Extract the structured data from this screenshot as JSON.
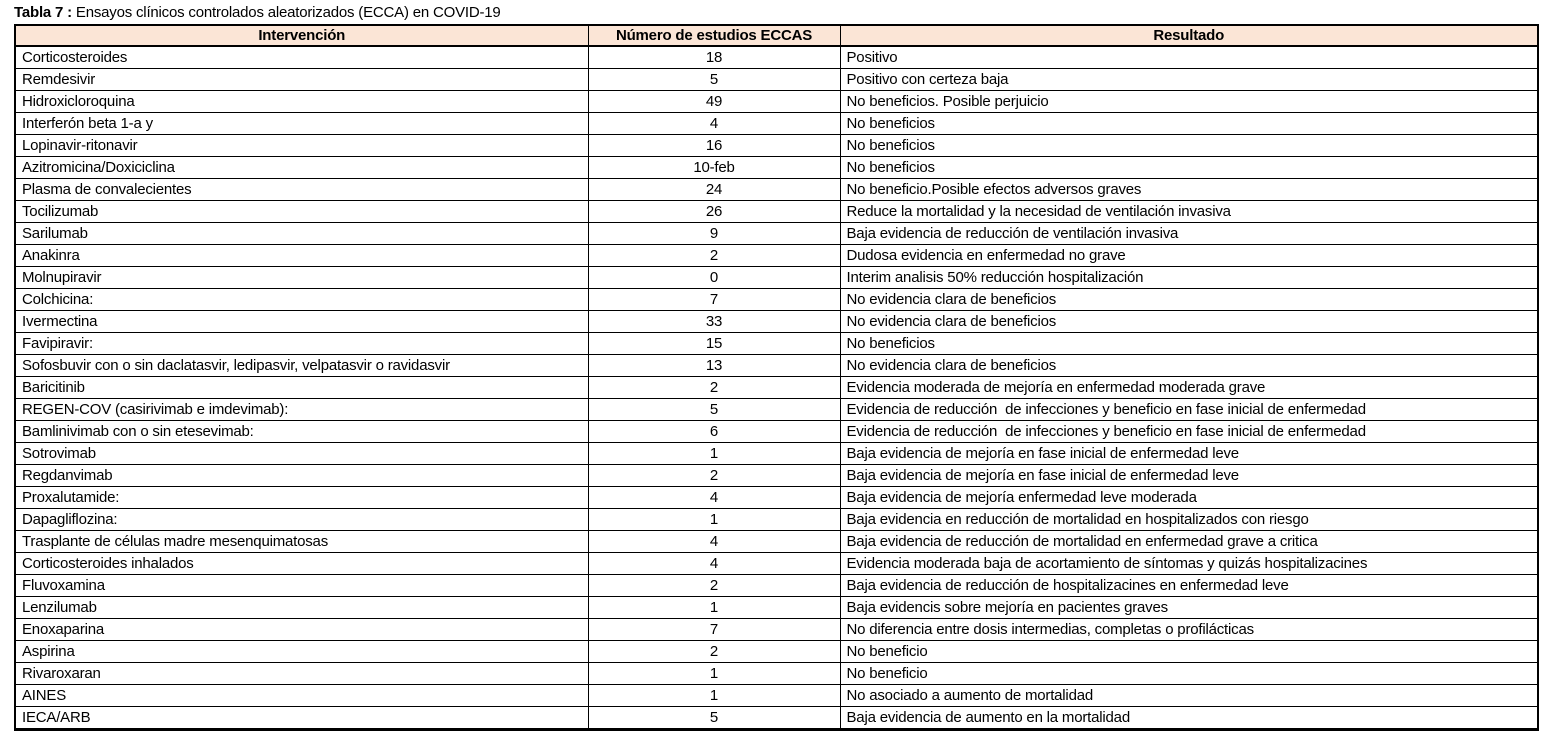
{
  "title": {
    "label": "Tabla 7 : ",
    "text": "Ensayos clínicos controlados aleatorizados (ECCA) en COVID-19"
  },
  "table": {
    "header_bg": "#FBE5D6",
    "border_color": "#000000",
    "headers": [
      "Intervención",
      "Número de estudios ECCAS",
      "Resultado"
    ],
    "rows": [
      {
        "intervencion": "Corticosteroides",
        "estudios": "18",
        "resultado": "Positivo"
      },
      {
        "intervencion": "Remdesivir",
        "estudios": "5",
        "resultado": "Positivo con certeza baja"
      },
      {
        "intervencion": "Hidroxicloroquina",
        "estudios": "49",
        "resultado": "No beneficios. Posible perjuicio"
      },
      {
        "intervencion": "Interferón beta 1-a y",
        "estudios": "4",
        "resultado": "No beneficios"
      },
      {
        "intervencion": "Lopinavir-ritonavir",
        "estudios": "16",
        "resultado": "No beneficios"
      },
      {
        "intervencion": "Azitromicina/Doxiciclina",
        "estudios": "10-feb",
        "resultado": "No beneficios"
      },
      {
        "intervencion": "Plasma de convalecientes",
        "estudios": "24",
        "resultado": "No beneficio.Posible efectos adversos graves"
      },
      {
        "intervencion": "Tocilizumab",
        "estudios": "26",
        "resultado": "Reduce la mortalidad y la necesidad de ventilación invasiva"
      },
      {
        "intervencion": "Sarilumab",
        "estudios": "9",
        "resultado": "Baja evidencia de reducción de ventilación invasiva"
      },
      {
        "intervencion": "Anakinra",
        "estudios": "2",
        "resultado": "Dudosa evidencia en enfermedad no grave"
      },
      {
        "intervencion": "Molnupiravir",
        "estudios": "0",
        "resultado": "Interim analisis 50% reducción hospitalización"
      },
      {
        "intervencion": "Colchicina:",
        "estudios": "7",
        "resultado": "No evidencia clara de beneficios"
      },
      {
        "intervencion": "Ivermectina",
        "estudios": "33",
        "resultado": "No evidencia clara de beneficios"
      },
      {
        "intervencion": "Favipiravir:",
        "estudios": "15",
        "resultado": "No beneficios"
      },
      {
        "intervencion": "Sofosbuvir con o sin daclatasvir, ledipasvir, velpatasvir o ravidasvir",
        "estudios": "13",
        "resultado": "No evidencia clara de beneficios"
      },
      {
        "intervencion": "Baricitinib",
        "estudios": "2",
        "resultado": "Evidencia moderada de mejoría en enfermedad moderada grave"
      },
      {
        "intervencion": "REGEN-COV (casirivimab e imdevimab):",
        "estudios": "5",
        "resultado": "Evidencia de reducción  de infecciones y beneficio en fase inicial de enfermedad"
      },
      {
        "intervencion": "Bamlinivimab con o sin etesevimab:",
        "estudios": "6",
        "resultado": "Evidencia de reducción  de infecciones y beneficio en fase inicial de enfermedad"
      },
      {
        "intervencion": "Sotrovimab",
        "estudios": "1",
        "resultado": "Baja evidencia de mejoría en fase inicial de enfermedad leve"
      },
      {
        "intervencion": "Regdanvimab",
        "estudios": "2",
        "resultado": "Baja evidencia de mejoría en fase inicial de enfermedad leve"
      },
      {
        "intervencion": "Proxalutamide:",
        "estudios": "4",
        "resultado": "Baja evidencia de mejoría enfermedad leve moderada"
      },
      {
        "intervencion": "Dapagliflozina:",
        "estudios": "1",
        "resultado": "Baja evidencia en reducción de mortalidad en hospitalizados con riesgo"
      },
      {
        "intervencion": "Trasplante de células madre mesenquimatosas",
        "estudios": "4",
        "resultado": "Baja evidencia de reducción de mortalidad en enfermedad grave a critica"
      },
      {
        "intervencion": "Corticosteroides inhalados",
        "estudios": "4",
        "resultado": "Evidencia moderada baja de acortamiento de síntomas y quizás hospitalizacines"
      },
      {
        "intervencion": "Fluvoxamina",
        "estudios": "2",
        "resultado": "Baja evidencia de reducción de hospitalizacines en enfermedad leve"
      },
      {
        "intervencion": "Lenzilumab",
        "estudios": "1",
        "resultado": "Baja evidencis sobre mejoría en pacientes graves"
      },
      {
        "intervencion": "Enoxaparina",
        "estudios": "7",
        "resultado": "No diferencia entre dosis intermedias, completas o profilácticas"
      },
      {
        "intervencion": "Aspirina",
        "estudios": "2",
        "resultado": "No beneficio"
      },
      {
        "intervencion": "Rivaroxaran",
        "estudios": "1",
        "resultado": "No beneficio"
      },
      {
        "intervencion": "AINES",
        "estudios": "1",
        "resultado": "No asociado a aumento de mortalidad"
      },
      {
        "intervencion": "IECA/ARB",
        "estudios": "5",
        "resultado": "Baja evidencia de aumento en la mortalidad"
      }
    ]
  }
}
